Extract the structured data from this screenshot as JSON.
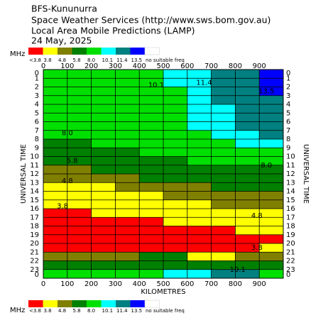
{
  "chart_data": {
    "type": "heatmap",
    "title_lines": [
      "BFS-Kununurra",
      "Space Weather Services (http://www.sws.bom.gov.au)",
      "Local Area Mobile Predictions (LAMP)",
      "24 May, 2025"
    ],
    "legend_unit": "MHz",
    "legend": [
      {
        "value": 3.8,
        "label": "<3.8"
      },
      3.8,
      4.8,
      5.8,
      {
        "value": 8,
        "label": "8.0"
      },
      10.1,
      11.4,
      13.5,
      "no suitable freq"
    ],
    "colors": [
      "#ff0000",
      "#ffff00",
      "#808000",
      "#008000",
      "#00e000",
      "#00ffff",
      "#008080",
      "#0000ff",
      "#ffffff"
    ],
    "xlabel": "KILOMETRES",
    "ylabel": "UNIVERSAL TIME",
    "xlim": [
      0,
      1000
    ],
    "xticks": [
      0,
      100,
      200,
      300,
      400,
      500,
      600,
      700,
      800,
      900
    ],
    "ylim": [
      0,
      24
    ],
    "yticks": [
      0,
      1,
      2,
      3,
      4,
      5,
      6,
      7,
      8,
      9,
      10,
      11,
      12,
      13,
      14,
      15,
      16,
      17,
      18,
      19,
      20,
      21,
      22,
      23,
      {
        "value": 24,
        "label": "0"
      }
    ],
    "grid": true,
    "annotations": [
      "10.1",
      "11.4",
      "13.5",
      "8.0",
      "5.8",
      "4.8",
      "3.8",
      "8.0",
      "4.8",
      "3.8",
      "10.1"
    ],
    "values": [
      [
        9,
        9,
        9,
        9,
        9.5,
        10.5,
        11,
        12,
        12.5,
        14
      ],
      [
        9,
        9,
        9,
        9,
        9.5,
        10.5,
        11,
        12,
        12.5,
        14
      ],
      [
        9,
        9,
        9,
        9,
        9.5,
        9.8,
        11,
        11.5,
        12.5,
        14
      ],
      [
        9,
        9,
        9,
        9,
        9.5,
        9.8,
        10.5,
        11.5,
        12,
        13
      ],
      [
        9,
        9,
        9,
        9,
        9.5,
        9.8,
        10.5,
        11,
        12,
        13
      ],
      [
        9,
        9,
        9,
        9,
        9,
        9.8,
        10.5,
        11,
        12,
        12.5
      ],
      [
        9,
        9,
        9,
        9,
        9,
        9.5,
        10.3,
        10.8,
        11.6,
        12
      ],
      [
        9,
        9,
        9,
        9,
        9,
        9,
        9.8,
        10.5,
        11,
        11.6
      ],
      [
        7,
        7.5,
        8.5,
        9,
        9,
        9,
        9,
        9.5,
        10.3,
        10.5
      ],
      [
        7,
        7,
        7,
        7.5,
        8.5,
        9,
        9,
        9,
        9,
        9
      ],
      [
        6,
        6.5,
        7,
        7,
        7,
        7.5,
        8.5,
        9,
        9,
        8.5
      ],
      [
        5.5,
        5.5,
        6,
        6.5,
        7,
        7,
        7,
        7,
        7,
        7
      ],
      [
        5,
        5.5,
        5.5,
        5.5,
        6,
        6,
        6.5,
        7,
        7,
        7
      ],
      [
        4.5,
        4.5,
        4.5,
        5,
        5.5,
        5.5,
        5.5,
        6,
        6,
        6
      ],
      [
        4,
        4.5,
        4.5,
        4.5,
        4.5,
        5,
        5,
        5.5,
        5.5,
        5.5
      ],
      [
        4,
        4,
        4,
        4.5,
        4.5,
        4.5,
        4.5,
        5,
        5,
        5
      ],
      [
        3.5,
        3.5,
        4,
        4,
        4,
        4,
        4.5,
        4.5,
        4.5,
        4.5
      ],
      [
        3.5,
        3.5,
        3.5,
        3.5,
        3.5,
        4,
        4,
        4,
        4,
        4
      ],
      [
        3.5,
        3.5,
        3.5,
        3.5,
        3.5,
        3.5,
        3.5,
        3.5,
        4,
        4
      ],
      [
        3.5,
        3.5,
        3.5,
        3.5,
        3.5,
        3.5,
        3.5,
        3.5,
        3.5,
        3.5
      ],
      [
        3.5,
        3.5,
        3.5,
        3.5,
        3.5,
        3.5,
        3.5,
        3.5,
        3.5,
        4
      ],
      [
        5,
        5,
        5,
        5.5,
        6.5,
        6.5,
        4.5,
        4,
        5,
        5
      ],
      [
        7,
        7,
        7,
        7,
        7,
        6.5,
        6.5,
        7,
        7,
        7
      ],
      [
        9,
        9,
        9,
        9,
        9.5,
        10.5,
        10.5,
        12,
        12,
        9
      ]
    ]
  }
}
